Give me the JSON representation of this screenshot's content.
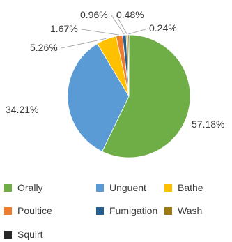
{
  "chart_data": {
    "type": "pie",
    "title": "",
    "slices": [
      {
        "name": "Orally",
        "value": 57.18,
        "label": "57.18%",
        "color": "#6fae47"
      },
      {
        "name": "Unguent",
        "value": 34.21,
        "label": "34.21%",
        "color": "#5b9bd5"
      },
      {
        "name": "Bathe",
        "value": 5.26,
        "label": "5.26%",
        "color": "#ffc000"
      },
      {
        "name": "Poultice",
        "value": 1.67,
        "label": "1.67%",
        "color": "#ed7d31"
      },
      {
        "name": "Fumigation",
        "value": 0.96,
        "label": "0.96%",
        "color": "#255e91"
      },
      {
        "name": "Wash",
        "value": 0.48,
        "label": "0.48%",
        "color": "#9e7a12"
      },
      {
        "name": "Squirt",
        "value": 0.24,
        "label": "0.24%",
        "color": "#262626"
      }
    ],
    "legend_position": "bottom"
  }
}
